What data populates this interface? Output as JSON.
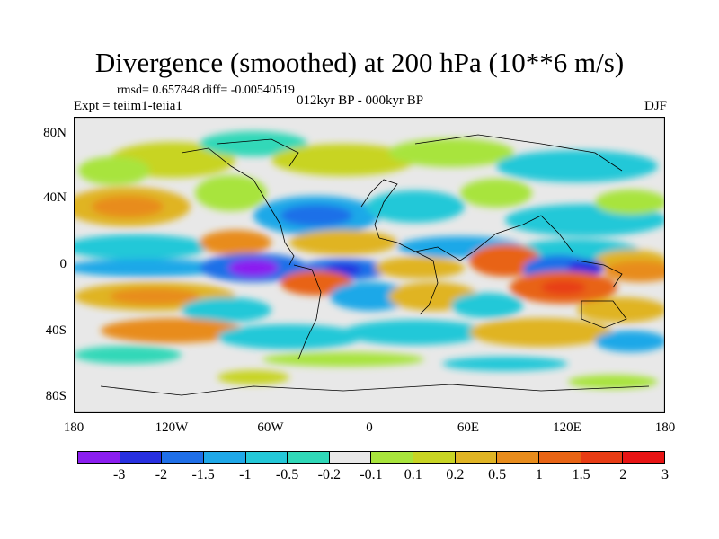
{
  "header": {
    "title": "Divergence (smoothed) at 200 hPa (10**6 m/s)",
    "stats": "rmsd= 0.657848 diff= -0.00540519",
    "expt": "Expt = teiim1-teiia1",
    "period": "012kyr BP - 000kyr BP",
    "season": "DJF"
  },
  "axes": {
    "y_ticks": [
      "80N",
      "40N",
      "0",
      "40S",
      "80S"
    ],
    "x_ticks": [
      "180",
      "120W",
      "60W",
      "0",
      "60E",
      "120E",
      "180"
    ]
  },
  "colorbar": {
    "colors": [
      "#8b1ef0",
      "#2830e0",
      "#1f6fe8",
      "#1fa8e8",
      "#24c8d8",
      "#30d8b8",
      "#e8e8e8",
      "#a8e43c",
      "#c8d424",
      "#e0b424",
      "#e88c1c",
      "#e86414",
      "#e83c14",
      "#e81414"
    ],
    "labels": [
      "-3",
      "-2",
      "-1.5",
      "-1",
      "-0.5",
      "-0.2",
      "-0.1",
      "0.1",
      "0.2",
      "0.5",
      "1",
      "1.5",
      "2",
      "3"
    ]
  }
}
